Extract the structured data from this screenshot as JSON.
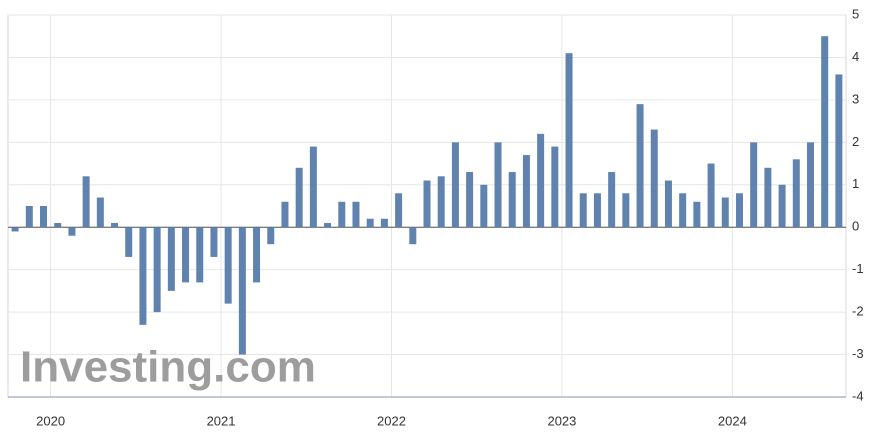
{
  "chart_data": {
    "type": "bar",
    "watermark": "Investing.com",
    "categories": [
      null,
      null,
      null,
      "2020",
      null,
      null,
      null,
      null,
      null,
      null,
      null,
      null,
      null,
      null,
      null,
      "2021",
      null,
      null,
      null,
      null,
      null,
      null,
      null,
      null,
      null,
      null,
      null,
      "2022",
      null,
      null,
      null,
      null,
      null,
      null,
      null,
      null,
      null,
      null,
      null,
      "2023",
      null,
      null,
      null,
      null,
      null,
      null,
      null,
      null,
      null,
      null,
      null,
      "2024",
      null,
      null,
      null,
      null,
      null,
      null,
      null
    ],
    "values": [
      -0.1,
      0.5,
      0.5,
      0.1,
      -0.2,
      1.2,
      0.7,
      0.1,
      -0.7,
      -2.3,
      -2.0,
      -1.5,
      -1.3,
      -1.3,
      -0.7,
      -1.8,
      -3.0,
      -1.3,
      -0.4,
      0.6,
      1.4,
      1.9,
      0.1,
      0.6,
      0.6,
      0.2,
      0.2,
      0.8,
      -0.4,
      1.1,
      1.2,
      2.0,
      1.3,
      1.0,
      2.0,
      1.3,
      1.7,
      2.2,
      1.9,
      4.1,
      0.8,
      0.8,
      1.3,
      0.8,
      2.9,
      2.3,
      1.1,
      0.8,
      0.6,
      1.5,
      0.7,
      0.8,
      2.0,
      1.4,
      1.0,
      1.6,
      2.0,
      4.5,
      3.6
    ],
    "color": "#5f83ae",
    "ylim": [
      -4,
      5
    ],
    "yticks": [
      -4,
      -3,
      -2,
      -1,
      0,
      1,
      2,
      3,
      4,
      5
    ],
    "grid": true
  }
}
